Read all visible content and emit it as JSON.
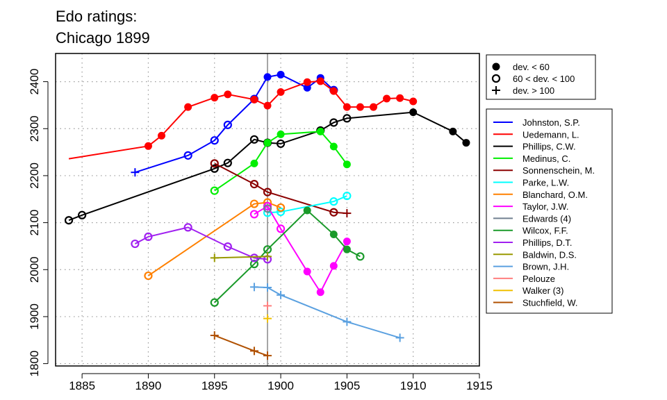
{
  "chart_data": {
    "type": "line",
    "title_lines": [
      "Edo ratings:",
      "Chicago 1899"
    ],
    "xlabel": "",
    "ylabel": "",
    "xlim": [
      1883,
      1915
    ],
    "ylim": [
      1795,
      2460
    ],
    "x_ticks": [
      1885,
      1890,
      1895,
      1900,
      1905,
      1910,
      1915
    ],
    "y_ticks": [
      1800,
      1900,
      2000,
      2100,
      2200,
      2300,
      2400
    ],
    "x_grid": [
      1885,
      1890,
      1895,
      1900,
      1905,
      1910
    ],
    "y_grid": [
      1800,
      1900,
      2000,
      2100,
      2200,
      2300,
      2400
    ],
    "grid": true,
    "marker_line_year": 1899,
    "marker_line_color": "#888888",
    "dev_legend": [
      {
        "marker": "filled",
        "label": "dev. < 60"
      },
      {
        "marker": "open",
        "label": "60 < dev. < 100"
      },
      {
        "marker": "plus",
        "label": "dev. > 100"
      }
    ],
    "series": [
      {
        "name": "Johnston, S.P.",
        "color": "#0000ff",
        "points": [
          [
            1889,
            2207,
            "plus"
          ],
          [
            1893,
            2243,
            "open"
          ],
          [
            1895,
            2275,
            "open"
          ],
          [
            1896,
            2308,
            "open"
          ],
          [
            1898,
            2363,
            "open"
          ],
          [
            1899,
            2410,
            "filled"
          ],
          [
            1900,
            2415,
            "filled"
          ],
          [
            1902,
            2387,
            "filled"
          ],
          [
            1903,
            2408,
            "filled"
          ],
          [
            1904,
            2382,
            "open"
          ]
        ]
      },
      {
        "name": "Uedemann, L.",
        "color": "#ff0000",
        "points": [
          [
            1884,
            2236,
            "none"
          ],
          [
            1890,
            2263,
            "filled"
          ],
          [
            1891,
            2285,
            "filled"
          ],
          [
            1893,
            2346,
            "filled"
          ],
          [
            1895,
            2366,
            "filled"
          ],
          [
            1896,
            2373,
            "filled"
          ],
          [
            1898,
            2362,
            "filled"
          ],
          [
            1899,
            2349,
            "filled"
          ],
          [
            1900,
            2378,
            "filled"
          ],
          [
            1902,
            2399,
            "filled"
          ],
          [
            1903,
            2401,
            "filled"
          ],
          [
            1904,
            2380,
            "filled"
          ],
          [
            1905,
            2346,
            "filled"
          ],
          [
            1906,
            2346,
            "filled"
          ],
          [
            1907,
            2346,
            "filled"
          ],
          [
            1908,
            2364,
            "filled"
          ],
          [
            1909,
            2365,
            "filled"
          ],
          [
            1910,
            2358,
            "filled"
          ]
        ]
      },
      {
        "name": "Phillips, C.W.",
        "color": "#000000",
        "points": [
          [
            1884,
            2105,
            "open"
          ],
          [
            1885,
            2116,
            "open"
          ],
          [
            1895,
            2215,
            "open"
          ],
          [
            1896,
            2227,
            "open"
          ],
          [
            1898,
            2277,
            "open"
          ],
          [
            1899,
            2270,
            "open"
          ],
          [
            1900,
            2268,
            "open"
          ],
          [
            1903,
            2296,
            "open"
          ],
          [
            1904,
            2313,
            "open"
          ],
          [
            1905,
            2322,
            "open"
          ],
          [
            1910,
            2335,
            "filled"
          ],
          [
            1913,
            2294,
            "filled"
          ],
          [
            1914,
            2270,
            "filled"
          ]
        ]
      },
      {
        "name": "Medinus, C.",
        "color": "#00ee00",
        "points": [
          [
            1895,
            2168,
            "open"
          ],
          [
            1898,
            2226,
            "filled"
          ],
          [
            1899,
            2270,
            "filled"
          ],
          [
            1900,
            2288,
            "filled"
          ],
          [
            1903,
            2294,
            "filled"
          ],
          [
            1904,
            2262,
            "filled"
          ],
          [
            1905,
            2224,
            "filled"
          ]
        ]
      },
      {
        "name": "Sonnenschein, M.",
        "color": "#8b0000",
        "points": [
          [
            1895,
            2226,
            "open"
          ],
          [
            1898,
            2182,
            "open"
          ],
          [
            1899,
            2165,
            "open"
          ],
          [
            1904,
            2122,
            "open"
          ],
          [
            1905,
            2120,
            "plus"
          ]
        ]
      },
      {
        "name": "Parke, L.W.",
        "color": "#00ffff",
        "points": [
          [
            1899,
            2121,
            "open"
          ],
          [
            1900,
            2123,
            "open"
          ],
          [
            1904,
            2145,
            "open"
          ],
          [
            1905,
            2157,
            "open"
          ]
        ]
      },
      {
        "name": "Blanchard, O.M.",
        "color": "#ff8000",
        "points": [
          [
            1890,
            1987,
            "open"
          ],
          [
            1898,
            2140,
            "open"
          ],
          [
            1899,
            2143,
            "open"
          ],
          [
            1900,
            2132,
            "open"
          ]
        ]
      },
      {
        "name": "Taylor, J.W.",
        "color": "#ff00ff",
        "points": [
          [
            1898,
            2118,
            "open"
          ],
          [
            1899,
            2135,
            "open"
          ],
          [
            1900,
            2087,
            "open"
          ],
          [
            1902,
            1996,
            "filled"
          ],
          [
            1903,
            1952,
            "filled"
          ],
          [
            1904,
            2008,
            "filled"
          ],
          [
            1905,
            2060,
            "filled"
          ]
        ]
      },
      {
        "name": "Edwards (4)",
        "color": "#708090",
        "points": [
          [
            1899,
            2130,
            "open"
          ]
        ]
      },
      {
        "name": "Wilcox, F.F.",
        "color": "#1a9a2a",
        "points": [
          [
            1895,
            1930,
            "open"
          ],
          [
            1898,
            2012,
            "open"
          ],
          [
            1899,
            2043,
            "open"
          ],
          [
            1902,
            2126,
            "filled"
          ],
          [
            1904,
            2075,
            "filled"
          ],
          [
            1905,
            2043,
            "filled"
          ],
          [
            1906,
            2028,
            "open"
          ]
        ]
      },
      {
        "name": "Phillips, D.T.",
        "color": "#a020f0",
        "points": [
          [
            1889,
            2055,
            "open"
          ],
          [
            1890,
            2070,
            "open"
          ],
          [
            1893,
            2090,
            "open"
          ],
          [
            1896,
            2049,
            "open"
          ],
          [
            1898,
            2025,
            "open"
          ],
          [
            1899,
            2022,
            "open"
          ]
        ]
      },
      {
        "name": "Baldwin, D.S.",
        "color": "#999900",
        "points": [
          [
            1895,
            2025,
            "plus"
          ],
          [
            1899,
            2028,
            "plus"
          ]
        ]
      },
      {
        "name": "Brown, J.H.",
        "color": "#5aa0e0",
        "points": [
          [
            1898,
            1963,
            "plus"
          ],
          [
            1899,
            1962,
            "plus"
          ],
          [
            1900,
            1946,
            "plus"
          ],
          [
            1905,
            1889,
            "plus"
          ],
          [
            1909,
            1855,
            "plus"
          ]
        ]
      },
      {
        "name": "Pelouze",
        "color": "#ff7f7f",
        "points": [
          [
            1899,
            1923,
            "plus"
          ]
        ]
      },
      {
        "name": "Walker (3)",
        "color": "#f0c000",
        "points": [
          [
            1899,
            1896,
            "plus"
          ]
        ]
      },
      {
        "name": "Stuchfield, W.",
        "color": "#b05000",
        "points": [
          [
            1895,
            1860,
            "plus"
          ],
          [
            1898,
            1827,
            "plus"
          ],
          [
            1899,
            1817,
            "plus"
          ]
        ]
      }
    ]
  }
}
